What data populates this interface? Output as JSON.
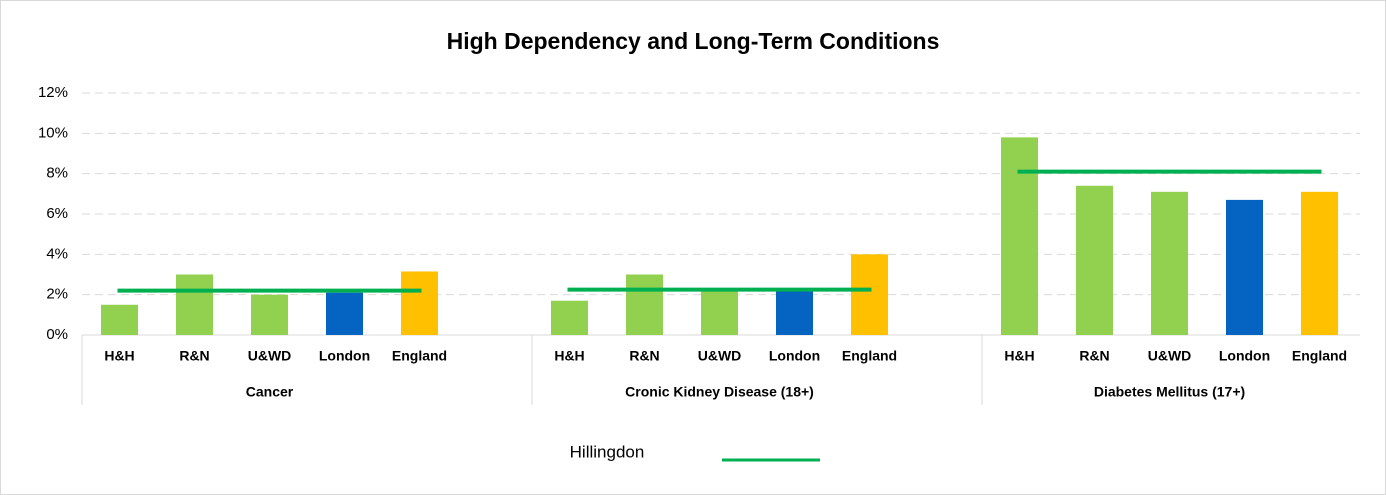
{
  "chart_data": {
    "type": "bar",
    "title": "High Dependency and Long-Term Conditions",
    "groups": [
      {
        "name": "Cancer",
        "categories": [
          "H&H",
          "R&N",
          "U&WD",
          "London",
          "England"
        ],
        "values": [
          1.5,
          3.0,
          2.0,
          2.1,
          3.15
        ]
      },
      {
        "name": "Cronic Kidney Disease (18+)",
        "categories": [
          "H&H",
          "R&N",
          "U&WD",
          "London",
          "England"
        ],
        "values": [
          1.7,
          3.0,
          2.3,
          2.3,
          4.0
        ]
      },
      {
        "name": "Diabetes Mellitus (17+)",
        "categories": [
          "H&H",
          "R&N",
          "U&WD",
          "London",
          "England"
        ],
        "values": [
          9.8,
          7.4,
          7.1,
          6.7,
          7.1
        ]
      }
    ],
    "colors": [
      "#92d050",
      "#92d050",
      "#92d050",
      "#0563c1",
      "#ffc000"
    ],
    "line": {
      "name": "Hillingdon",
      "color": "#00b050",
      "values": [
        2.2,
        2.25,
        8.1
      ]
    },
    "ylim": [
      0,
      12
    ],
    "yticks": [
      {
        "value": 0,
        "label": "0%"
      },
      {
        "value": 2,
        "label": "2%"
      },
      {
        "value": 4,
        "label": "4%"
      },
      {
        "value": 6,
        "label": "6%"
      },
      {
        "value": 8,
        "label": "8%"
      },
      {
        "value": 10,
        "label": "10%"
      },
      {
        "value": 12,
        "label": "12%"
      }
    ],
    "grid": true
  }
}
